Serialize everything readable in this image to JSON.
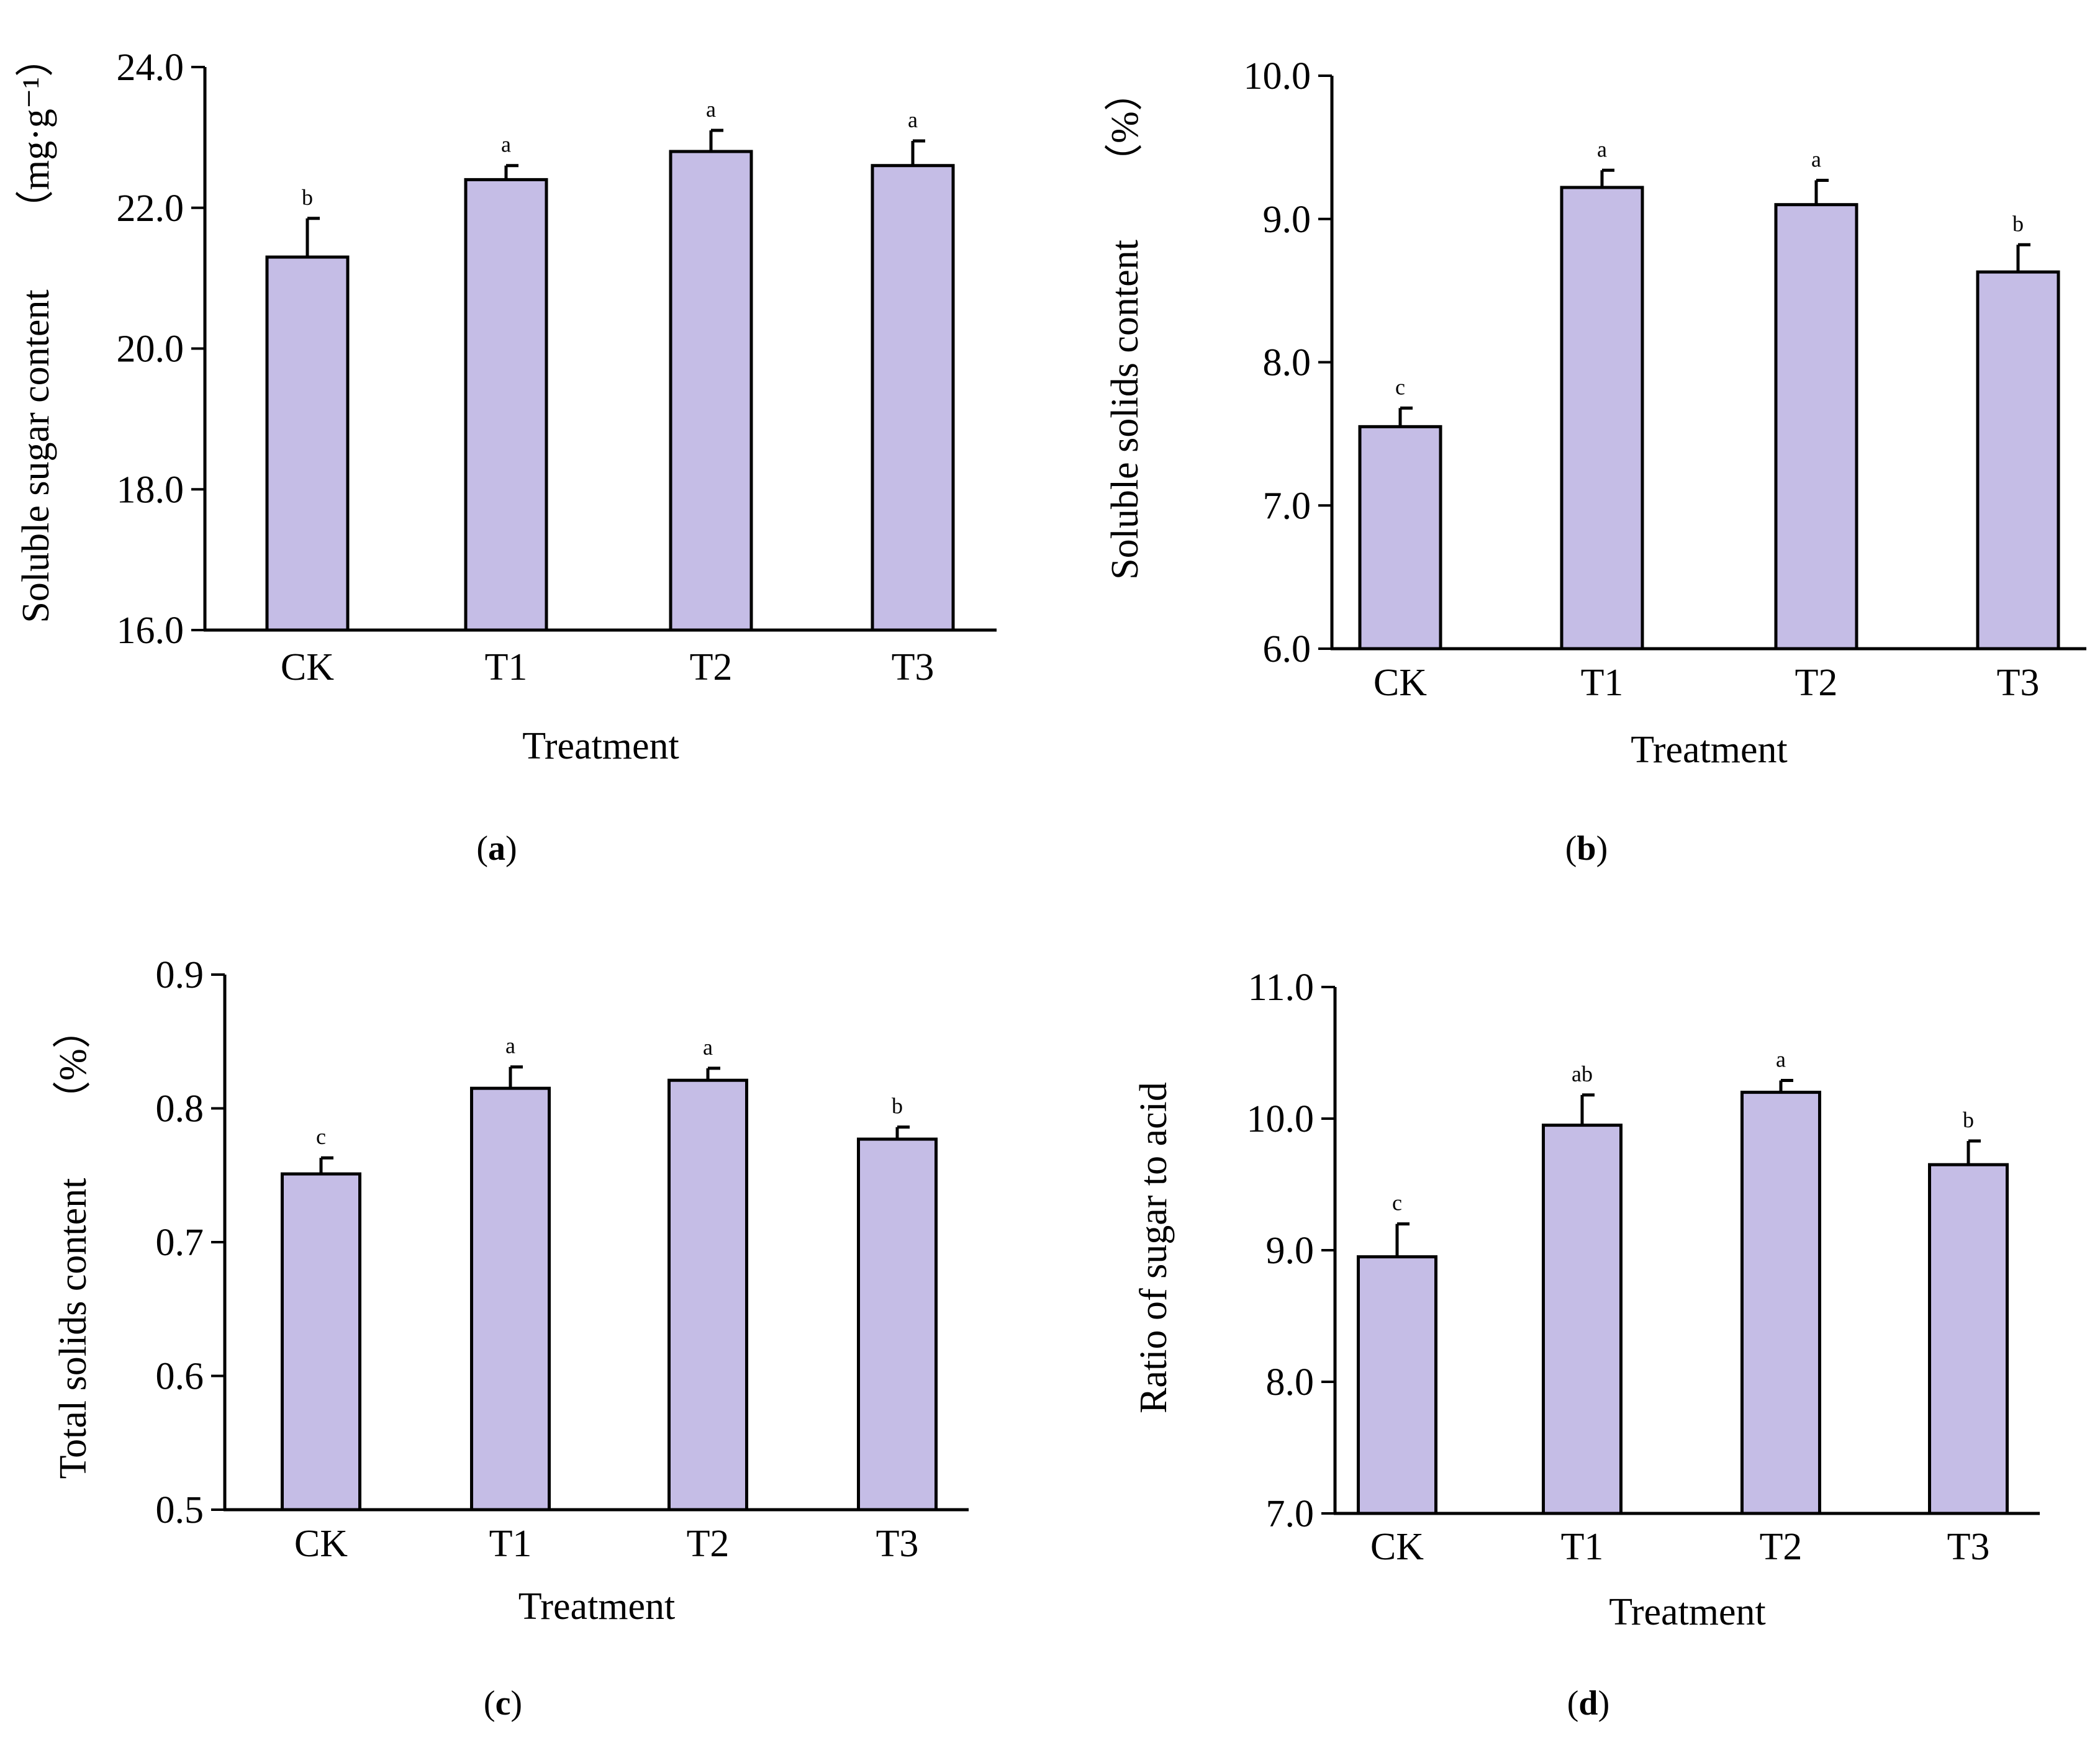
{
  "figure_title": "",
  "colors": {
    "bar_fill": "#c5bde6",
    "bar_stroke": "#000000",
    "axis": "#000000"
  },
  "chart_data": [
    {
      "type": "bar",
      "panel": "a",
      "title": "",
      "xlabel": "Treatment",
      "ylabel": "Soluble sugar content",
      "ylabel_unit": "（mg·g⁻¹）",
      "categories": [
        "CK",
        "T1",
        "T2",
        "T3"
      ],
      "values": [
        21.3,
        22.4,
        22.8,
        22.6
      ],
      "error": [
        0.55,
        0.2,
        0.3,
        0.35
      ],
      "significance": [
        "b",
        "a",
        "a",
        "a"
      ],
      "ylim": [
        16.0,
        24.0
      ],
      "yticks": [
        16.0,
        18.0,
        20.0,
        22.0,
        24.0
      ],
      "ytick_labels": [
        "16.0",
        "18.0",
        "20.0",
        "22.0",
        "24.0"
      ],
      "caption": "a",
      "grid": false
    },
    {
      "type": "bar",
      "panel": "b",
      "title": "",
      "xlabel": "Treatment",
      "ylabel": "Soluble solids content",
      "ylabel_unit": "（%）",
      "categories": [
        "CK",
        "T1",
        "T2",
        "T3"
      ],
      "values": [
        7.55,
        9.22,
        9.1,
        8.63
      ],
      "error": [
        0.13,
        0.12,
        0.17,
        0.19
      ],
      "significance": [
        "c",
        "a",
        "a",
        "b"
      ],
      "ylim": [
        6.0,
        10.0
      ],
      "yticks": [
        6.0,
        7.0,
        8.0,
        9.0,
        10.0
      ],
      "ytick_labels": [
        "6.0",
        "7.0",
        "8.0",
        "9.0",
        "10.0"
      ],
      "caption": "b",
      "grid": false
    },
    {
      "type": "bar",
      "panel": "c",
      "title": "",
      "xlabel": "Treatment",
      "ylabel": "Total solids content",
      "ylabel_unit": "（%）",
      "categories": [
        "CK",
        "T1",
        "T2",
        "T3"
      ],
      "values": [
        0.751,
        0.815,
        0.821,
        0.777
      ],
      "error": [
        0.012,
        0.016,
        0.009,
        0.009
      ],
      "significance": [
        "c",
        "a",
        "a",
        "b"
      ],
      "ylim": [
        0.5,
        0.9
      ],
      "yticks": [
        0.5,
        0.6,
        0.7,
        0.8,
        0.9
      ],
      "ytick_labels": [
        "0.5",
        "0.6",
        "0.7",
        "0.8",
        "0.9"
      ],
      "caption": "c",
      "grid": false
    },
    {
      "type": "bar",
      "panel": "d",
      "title": "",
      "xlabel": "Treatment",
      "ylabel": "Ratio of sugar to acid",
      "ylabel_unit": "",
      "categories": [
        "CK",
        "T1",
        "T2",
        "T3"
      ],
      "values": [
        8.95,
        9.95,
        10.2,
        9.65
      ],
      "error": [
        0.25,
        0.23,
        0.09,
        0.18
      ],
      "significance": [
        "c",
        "ab",
        "a",
        "b"
      ],
      "ylim": [
        7.0,
        11.0
      ],
      "yticks": [
        7.0,
        8.0,
        9.0,
        10.0,
        11.0
      ],
      "ytick_labels": [
        "7.0",
        "8.0",
        "9.0",
        "10.0",
        "11.0"
      ],
      "caption": "d",
      "grid": false
    }
  ]
}
